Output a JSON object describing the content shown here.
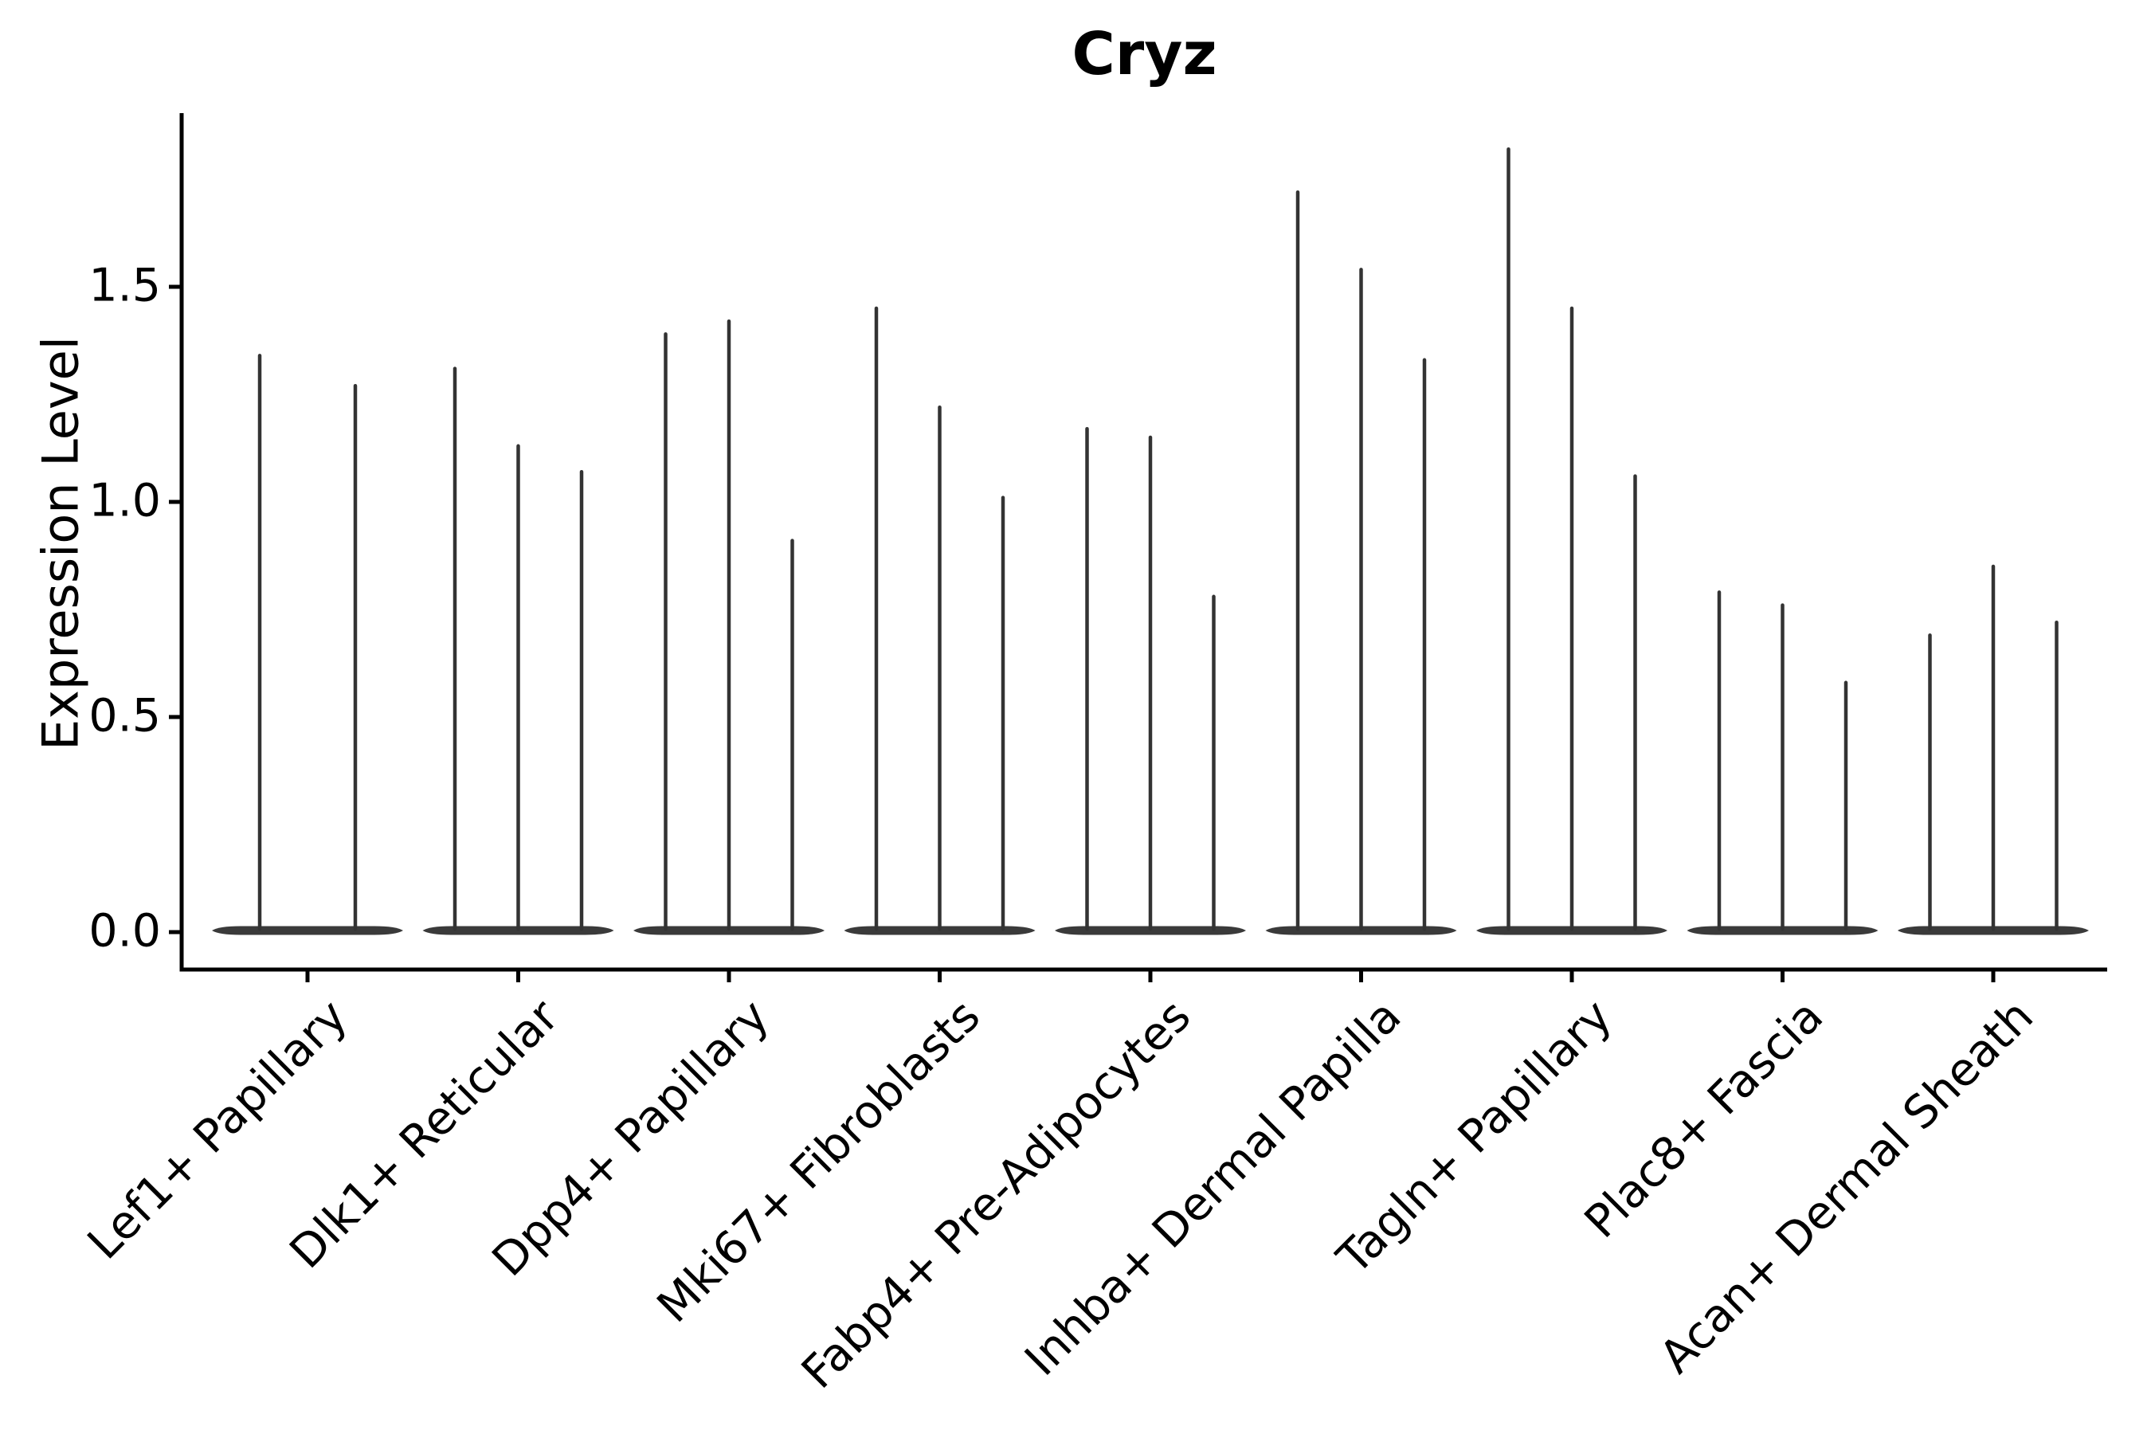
{
  "title": "Cryz",
  "ylabel": "Expression Level",
  "chart_data": {
    "type": "violin",
    "title": "Cryz",
    "xlabel": "",
    "ylabel": "Expression Level",
    "ylim": [
      -0.09,
      1.9
    ],
    "grid": false,
    "legend": false,
    "yticks": [
      {
        "label": "0.0",
        "value": 0.0
      },
      {
        "label": "0.5",
        "value": 0.5
      },
      {
        "label": "1.0",
        "value": 1.0
      },
      {
        "label": "1.5",
        "value": 1.5
      }
    ],
    "categories": [
      "Lef1+ Papillary",
      "Dlk1+ Reticular",
      "Dpp4+ Papillary",
      "Mki67+ Fibroblasts",
      "Fabp4+ Pre-Adipocytes",
      "Inhba+ Dermal Papilla",
      "Tagln+ Papillary",
      "Plac8+ Fascia",
      "Acan+ Dermal Sheath"
    ],
    "groups": [
      {
        "category": "Lef1+ Papillary",
        "violin_maxima": [
          1.34,
          1.27
        ]
      },
      {
        "category": "Dlk1+ Reticular",
        "violin_maxima": [
          1.31,
          1.13,
          1.07
        ]
      },
      {
        "category": "Dpp4+ Papillary",
        "violin_maxima": [
          1.39,
          1.42,
          0.91
        ]
      },
      {
        "category": "Mki67+ Fibroblasts",
        "violin_maxima": [
          1.45,
          1.22,
          1.01
        ]
      },
      {
        "category": "Fabp4+ Pre-Adipocytes",
        "violin_maxima": [
          1.17,
          1.15,
          0.78
        ]
      },
      {
        "category": "Inhba+ Dermal Papilla",
        "violin_maxima": [
          1.72,
          1.54,
          1.33
        ]
      },
      {
        "category": "Tagln+ Papillary",
        "violin_maxima": [
          1.82,
          1.45,
          1.06
        ]
      },
      {
        "category": "Plac8+ Fascia",
        "violin_maxima": [
          0.79,
          0.76,
          0.58
        ]
      },
      {
        "category": "Acan+ Dermal Sheath",
        "violin_maxima": [
          0.69,
          0.85,
          0.72
        ]
      }
    ],
    "baseline_value": 0.0,
    "colors": {
      "violin_stroke": "#333333",
      "violin_base_fill": "#3a3a3a",
      "axis": "#000000",
      "background": "#ffffff"
    }
  }
}
